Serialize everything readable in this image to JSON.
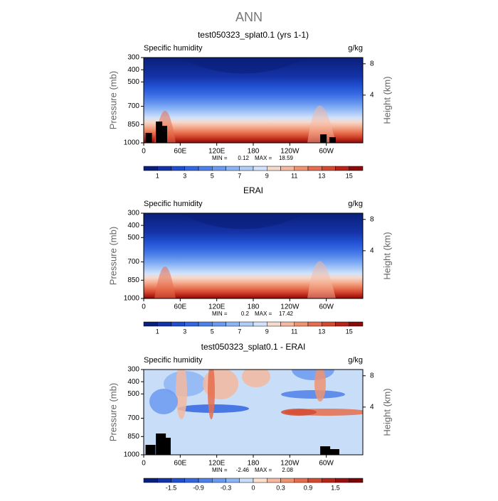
{
  "title": "ANN",
  "panels": [
    {
      "title": "test050323_splat0.1 (yrs 1-1)",
      "left_label": "Specific humidity",
      "right_label": "g/kg",
      "y_label": "Pressure (mb)",
      "y2_label": "Height (km)",
      "ylim": [
        1000,
        300
      ],
      "yticks": [
        300,
        400,
        500,
        700,
        850,
        1000
      ],
      "y2ticks": [
        8,
        4
      ],
      "xlim": [
        0,
        360
      ],
      "xticks": [
        0,
        {
          "value": 60,
          "label": "60E"
        },
        {
          "value": 120,
          "label": "120E"
        },
        180,
        {
          "value": 240,
          "label": "120W"
        },
        {
          "value": 300,
          "label": "60W"
        }
      ],
      "min_label": "MIN =",
      "min": 0.12,
      "max_label": "MAX =",
      "max": 18.59,
      "terrain": true,
      "colorbar": {
        "colors": [
          "#0a1f7a",
          "#1533a8",
          "#1f4fd0",
          "#3366e0",
          "#4d80e8",
          "#6b9af0",
          "#8db5f5",
          "#b0cdf8",
          "#d2e2fa",
          "#f5d9cc",
          "#f5b8a0",
          "#ef9473",
          "#e66e4e",
          "#d44a30",
          "#b82418",
          "#8c0a0a"
        ],
        "labels": [
          1,
          3,
          5,
          7,
          9,
          11,
          13,
          15
        ]
      }
    },
    {
      "title": "ERAI",
      "left_label": "Specific humidity",
      "right_label": "g/kg",
      "y_label": "Pressure (mb)",
      "y2_label": "Height (km)",
      "ylim": [
        1000,
        300
      ],
      "yticks": [
        300,
        400,
        500,
        700,
        850,
        1000
      ],
      "y2ticks": [
        8,
        4
      ],
      "xlim": [
        0,
        360
      ],
      "xticks": [
        0,
        {
          "value": 60,
          "label": "60E"
        },
        {
          "value": 120,
          "label": "120E"
        },
        180,
        {
          "value": 240,
          "label": "120W"
        },
        {
          "value": 300,
          "label": "60W"
        }
      ],
      "min_label": "MIN =",
      "min": 0.2,
      "max_label": "MAX =",
      "max": 17.42,
      "terrain": false,
      "colorbar": {
        "colors": [
          "#0a1f7a",
          "#1533a8",
          "#1f4fd0",
          "#3366e0",
          "#4d80e8",
          "#6b9af0",
          "#8db5f5",
          "#b0cdf8",
          "#d2e2fa",
          "#f5d9cc",
          "#f5b8a0",
          "#ef9473",
          "#e66e4e",
          "#d44a30",
          "#b82418",
          "#8c0a0a"
        ],
        "labels": [
          1,
          3,
          5,
          7,
          9,
          11,
          13,
          15
        ]
      }
    },
    {
      "title": "test050323_splat0.1 - ERAI",
      "left_label": "Specific humidity",
      "right_label": "g/kg",
      "y_label": "Pressure (mb)",
      "y2_label": "Height (km)",
      "ylim": [
        1000,
        300
      ],
      "yticks": [
        300,
        400,
        500,
        700,
        850,
        1000
      ],
      "y2ticks": [
        8,
        4
      ],
      "xlim": [
        0,
        360
      ],
      "xticks": [
        0,
        {
          "value": 60,
          "label": "60E"
        },
        {
          "value": 120,
          "label": "120E"
        },
        180,
        {
          "value": 240,
          "label": "120W"
        },
        {
          "value": 300,
          "label": "60W"
        }
      ],
      "min_label": "MIN =",
      "min": -2.46,
      "max_label": "MAX =",
      "max": 2.08,
      "terrain": true,
      "colorbar": {
        "colors": [
          "#0a1f7a",
          "#1533a8",
          "#1f4fd0",
          "#3366e0",
          "#4d80e8",
          "#6b9af0",
          "#8db5f5",
          "#c8ddf8",
          "#fbe0d0",
          "#f5b8a0",
          "#ef9473",
          "#e66e4e",
          "#d44a30",
          "#b82418",
          "#9a1010",
          "#7a0505"
        ],
        "labels": [
          -1.5,
          -0.9,
          -0.3,
          0,
          0.3,
          0.9,
          1.5
        ]
      }
    }
  ]
}
